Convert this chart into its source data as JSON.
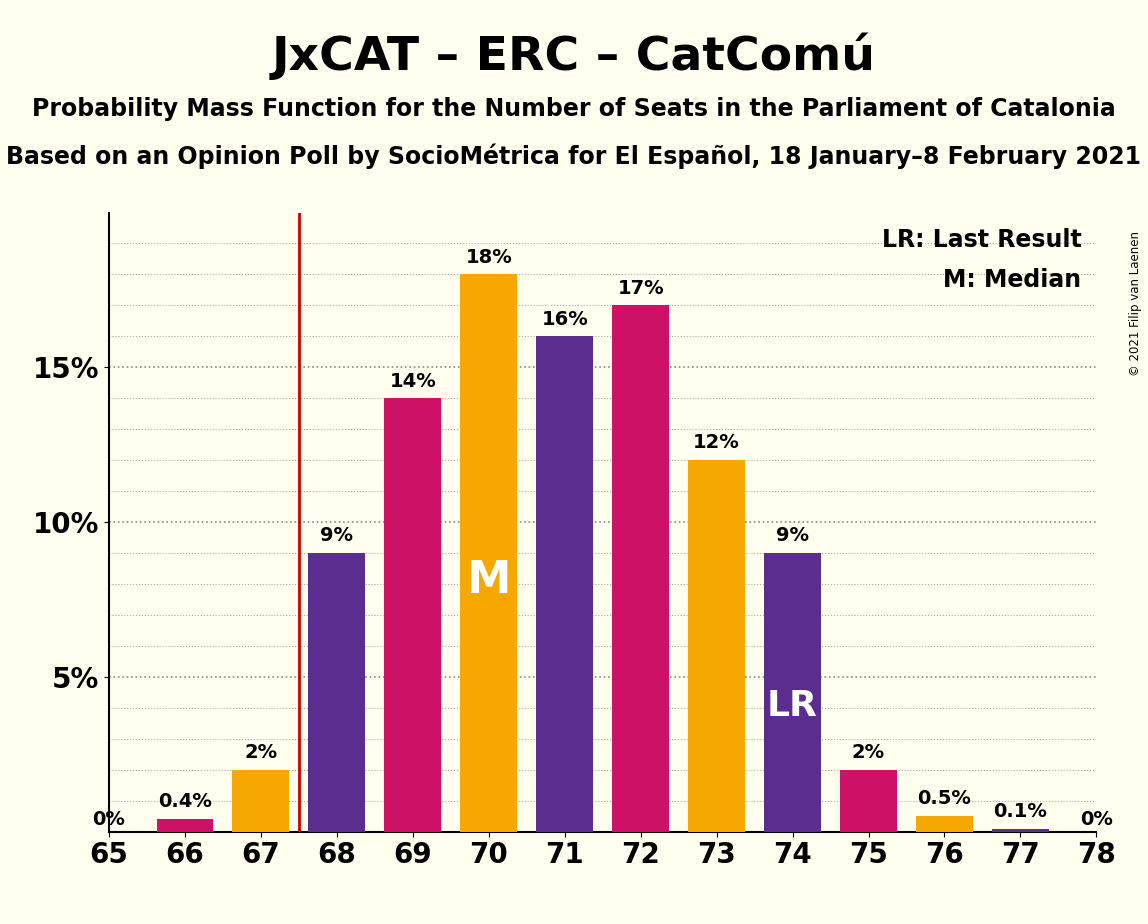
{
  "title": "JxCAT – ERC – CatComú",
  "subtitle1": "Probability Mass Function for the Number of Seats in the Parliament of Catalonia",
  "subtitle2": "Based on an Opinion Poll by SocioMétrica for El Español, 18 January–8 February 2021",
  "copyright": "© 2021 Filip van Laenen",
  "seats": [
    65,
    66,
    67,
    68,
    69,
    70,
    71,
    72,
    73,
    74,
    75,
    76,
    77,
    78
  ],
  "values_purple": [
    0.0,
    0.0,
    0.0,
    9.0,
    0.0,
    0.0,
    16.0,
    0.0,
    0.0,
    9.0,
    0.0,
    0.0,
    0.1,
    0.0
  ],
  "values_crimson": [
    0.0,
    0.4,
    0.0,
    0.0,
    14.0,
    0.0,
    0.0,
    17.0,
    0.0,
    0.0,
    2.0,
    0.0,
    0.0,
    0.0
  ],
  "values_orange": [
    0.0,
    0.0,
    2.0,
    0.0,
    0.0,
    18.0,
    0.0,
    0.0,
    12.0,
    0.0,
    0.0,
    0.5,
    0.0,
    0.0
  ],
  "bar_heights": [
    0.0,
    0.4,
    2.0,
    9.0,
    14.0,
    18.0,
    16.0,
    17.0,
    12.0,
    9.0,
    2.0,
    0.5,
    0.1,
    0.0
  ],
  "bar_labels": [
    "0%",
    "0.4%",
    "2%",
    "9%",
    "14%",
    "18%",
    "16%",
    "17%",
    "12%",
    "9%",
    "2%",
    "0.5%",
    "0.1%",
    "0%"
  ],
  "color_purple": "#5B2D8E",
  "color_crimson": "#CC1166",
  "color_orange": "#F5A800",
  "background_color": "#FFFFF0",
  "vline_color": "#CC0000",
  "median_seat_idx": 5,
  "lr_seat_idx": 9,
  "ylim": [
    0,
    20
  ],
  "yticks": [
    5,
    10,
    15
  ],
  "ytick_labels": [
    "5%",
    "10%",
    "15%"
  ],
  "legend_lr": "LR: Last Result",
  "legend_m": "M: Median",
  "bar_width": 0.75,
  "title_fontsize": 34,
  "subtitle_fontsize": 17,
  "label_fontsize": 14,
  "tick_fontsize": 20,
  "legend_fontsize": 17
}
